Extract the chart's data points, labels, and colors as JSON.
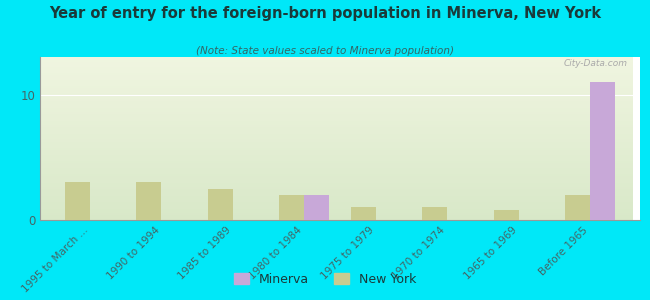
{
  "title": "Year of entry for the foreign-born population in Minerva, New York",
  "subtitle": "(Note: State values scaled to Minerva population)",
  "categories": [
    "1995 to March ...",
    "1990 to 1994",
    "1985 to 1989",
    "1980 to 1984",
    "1975 to 1979",
    "1970 to 1974",
    "1965 to 1969",
    "Before 1965"
  ],
  "minerva_values": [
    0,
    0,
    0,
    2,
    0,
    0,
    0,
    11
  ],
  "newyork_values": [
    3,
    3,
    2.5,
    2,
    1,
    1,
    0.8,
    2
  ],
  "minerva_color": "#c8a8d8",
  "newyork_color": "#c8cc90",
  "bg_chart_top": "#d8e8c8",
  "bg_chart_bottom": "#f0f5e0",
  "bg_outer": "#00e8f8",
  "ylim": [
    0,
    13
  ],
  "ytick_val": 10,
  "bar_width": 0.35,
  "watermark": "City-Data.com",
  "title_color": "#1a3a3a",
  "subtitle_color": "#336666",
  "tick_color": "#446666",
  "legend_label_minerva": "Minerva",
  "legend_label_ny": "New York"
}
